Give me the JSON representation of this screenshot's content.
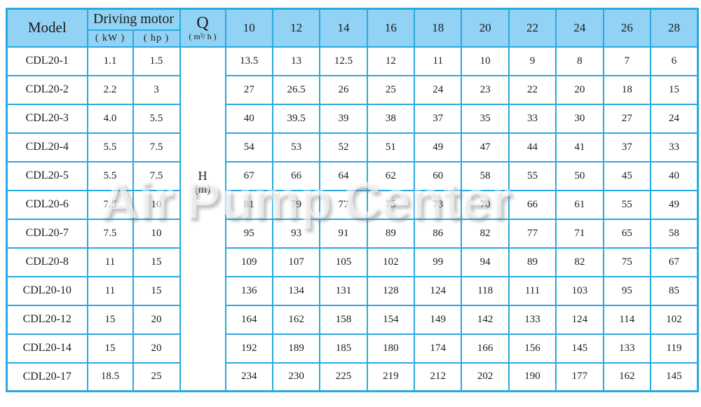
{
  "watermark": "Air Pump Center",
  "colors": {
    "border": "#29a9e1",
    "header_bg": "#92d2f4",
    "text": "#1c1c1c"
  },
  "table": {
    "header": {
      "model_label": "Model",
      "driving_motor_label": "Driving motor",
      "kw_label": "( kW )",
      "hp_label": "( hp )",
      "q_label": "Q",
      "q_unit": "( m³/ h )",
      "h_label": "H",
      "h_unit": "(m)",
      "q_columns": [
        "10",
        "12",
        "14",
        "16",
        "18",
        "20",
        "22",
        "24",
        "26",
        "28"
      ]
    },
    "rows": [
      {
        "model": "CDL20-1",
        "kw": "1.1",
        "hp": "1.5",
        "h": [
          "13.5",
          "13",
          "12.5",
          "12",
          "11",
          "10",
          "9",
          "8",
          "7",
          "6"
        ]
      },
      {
        "model": "CDL20-2",
        "kw": "2.2",
        "hp": "3",
        "h": [
          "27",
          "26.5",
          "26",
          "25",
          "24",
          "23",
          "22",
          "20",
          "18",
          "15"
        ]
      },
      {
        "model": "CDL20-3",
        "kw": "4.0",
        "hp": "5.5",
        "h": [
          "40",
          "39.5",
          "39",
          "38",
          "37",
          "35",
          "33",
          "30",
          "27",
          "24"
        ]
      },
      {
        "model": "CDL20-4",
        "kw": "5.5",
        "hp": "7.5",
        "h": [
          "54",
          "53",
          "52",
          "51",
          "49",
          "47",
          "44",
          "41",
          "37",
          "33"
        ]
      },
      {
        "model": "CDL20-5",
        "kw": "5.5",
        "hp": "7.5",
        "h": [
          "67",
          "66",
          "64",
          "62",
          "60",
          "58",
          "55",
          "50",
          "45",
          "40"
        ]
      },
      {
        "model": "CDL20-6",
        "kw": "7.5",
        "hp": "10",
        "h": [
          "81",
          "79",
          "77",
          "75",
          "73",
          "70",
          "66",
          "61",
          "55",
          "49"
        ]
      },
      {
        "model": "CDL20-7",
        "kw": "7.5",
        "hp": "10",
        "h": [
          "95",
          "93",
          "91",
          "89",
          "86",
          "82",
          "77",
          "71",
          "65",
          "58"
        ]
      },
      {
        "model": "CDL20-8",
        "kw": "11",
        "hp": "15",
        "h": [
          "109",
          "107",
          "105",
          "102",
          "99",
          "94",
          "89",
          "82",
          "75",
          "67"
        ]
      },
      {
        "model": "CDL20-10",
        "kw": "11",
        "hp": "15",
        "h": [
          "136",
          "134",
          "131",
          "128",
          "124",
          "118",
          "111",
          "103",
          "95",
          "85"
        ]
      },
      {
        "model": "CDL20-12",
        "kw": "15",
        "hp": "20",
        "h": [
          "164",
          "162",
          "158",
          "154",
          "149",
          "142",
          "133",
          "124",
          "114",
          "102"
        ]
      },
      {
        "model": "CDL20-14",
        "kw": "15",
        "hp": "20",
        "h": [
          "192",
          "189",
          "185",
          "180",
          "174",
          "166",
          "156",
          "145",
          "133",
          "119"
        ]
      },
      {
        "model": "CDL20-17",
        "kw": "18.5",
        "hp": "25",
        "h": [
          "234",
          "230",
          "225",
          "219",
          "212",
          "202",
          "190",
          "177",
          "162",
          "145"
        ]
      }
    ]
  }
}
